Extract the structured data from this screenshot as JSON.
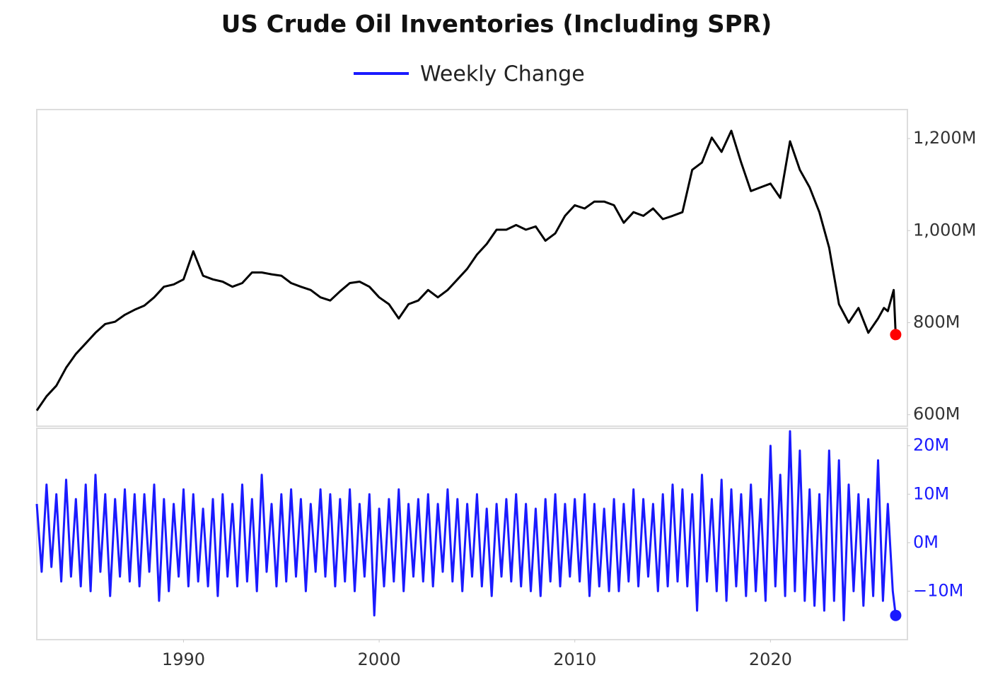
{
  "chart_data": [
    {
      "type": "line",
      "title": "US Crude Oil Inventories (Including SPR)",
      "color": "#000000",
      "last_marker_color": "#ff0000",
      "xlim": [
        1982.5,
        2027
      ],
      "ylim": [
        575,
        1263
      ],
      "yticks": [
        {
          "value": 600,
          "label": "600M"
        },
        {
          "value": 800,
          "label": "800M"
        },
        {
          "value": 1000,
          "label": "1,000M"
        },
        {
          "value": 1200,
          "label": "1,200M"
        }
      ],
      "x": [
        1982.5,
        1983,
        1983.5,
        1984,
        1984.5,
        1985,
        1985.5,
        1986,
        1986.5,
        1987,
        1987.5,
        1988,
        1988.5,
        1989,
        1989.5,
        1990,
        1990.5,
        1991,
        1991.5,
        1992,
        1992.5,
        1993,
        1993.5,
        1994,
        1994.5,
        1995,
        1995.5,
        1996,
        1996.5,
        1997,
        1997.5,
        1998,
        1998.5,
        1999,
        1999.5,
        2000,
        2000.5,
        2001,
        2001.5,
        2002,
        2002.5,
        2003,
        2003.5,
        2004,
        2004.5,
        2005,
        2005.5,
        2006,
        2006.5,
        2007,
        2007.5,
        2008,
        2008.5,
        2009,
        2009.5,
        2010,
        2010.5,
        2011,
        2011.5,
        2012,
        2012.5,
        2013,
        2013.5,
        2014,
        2014.5,
        2015,
        2015.5,
        2016,
        2016.5,
        2017,
        2017.5,
        2018,
        2018.5,
        2019,
        2019.5,
        2020,
        2020.5,
        2021,
        2021.5,
        2022,
        2022.5,
        2023,
        2023.5,
        2024,
        2024.5,
        2025,
        2025.5,
        2025.8,
        2026,
        2026.3,
        2026.4
      ],
      "values": [
        609,
        640,
        663,
        702,
        732,
        755,
        778,
        797,
        802,
        817,
        828,
        837,
        855,
        878,
        883,
        894,
        955,
        902,
        894,
        889,
        878,
        886,
        909,
        909,
        905,
        902,
        886,
        878,
        871,
        855,
        848,
        868,
        886,
        889,
        878,
        855,
        840,
        809,
        840,
        848,
        871,
        855,
        871,
        894,
        917,
        948,
        971,
        1002,
        1002,
        1012,
        1002,
        1009,
        978,
        994,
        1032,
        1055,
        1048,
        1063,
        1063,
        1055,
        1017,
        1040,
        1032,
        1048,
        1025,
        1032,
        1040,
        1132,
        1148,
        1202,
        1171,
        1217,
        1148,
        1086,
        1094,
        1102,
        1071,
        1194,
        1132,
        1094,
        1040,
        963,
        840,
        800,
        832,
        778,
        809,
        832,
        825,
        871,
        774
      ]
    },
    {
      "type": "line",
      "last_marker_color": "#1a1aff",
      "xlim": [
        1982.5,
        2027
      ],
      "ylim": [
        -20,
        23.6
      ],
      "xticks": [
        1990,
        2000,
        2010,
        2020
      ],
      "yticks": [
        {
          "value": -10,
          "label": "−10M"
        },
        {
          "value": 0,
          "label": "0M"
        },
        {
          "value": 10,
          "label": "10M"
        },
        {
          "value": 20,
          "label": "20M"
        }
      ],
      "x": [
        1982.5,
        1982.75,
        1983,
        1983.25,
        1983.5,
        1983.75,
        1984,
        1984.25,
        1984.5,
        1984.75,
        1985,
        1985.25,
        1985.5,
        1985.75,
        1986,
        1986.25,
        1986.5,
        1986.75,
        1987,
        1987.25,
        1987.5,
        1987.75,
        1988,
        1988.25,
        1988.5,
        1988.75,
        1989,
        1989.25,
        1989.5,
        1989.75,
        1990,
        1990.25,
        1990.5,
        1990.75,
        1991,
        1991.25,
        1991.5,
        1991.75,
        1992,
        1992.25,
        1992.5,
        1992.75,
        1993,
        1993.25,
        1993.5,
        1993.75,
        1994,
        1994.25,
        1994.5,
        1994.75,
        1995,
        1995.25,
        1995.5,
        1995.75,
        1996,
        1996.25,
        1996.5,
        1996.75,
        1997,
        1997.25,
        1997.5,
        1997.75,
        1998,
        1998.25,
        1998.5,
        1998.75,
        1999,
        1999.25,
        1999.5,
        1999.75,
        2000,
        2000.25,
        2000.5,
        2000.75,
        2001,
        2001.25,
        2001.5,
        2001.75,
        2002,
        2002.25,
        2002.5,
        2002.75,
        2003,
        2003.25,
        2003.5,
        2003.75,
        2004,
        2004.25,
        2004.5,
        2004.75,
        2005,
        2005.25,
        2005.5,
        2005.75,
        2006,
        2006.25,
        2006.5,
        2006.75,
        2007,
        2007.25,
        2007.5,
        2007.75,
        2008,
        2008.25,
        2008.5,
        2008.75,
        2009,
        2009.25,
        2009.5,
        2009.75,
        2010,
        2010.25,
        2010.5,
        2010.75,
        2011,
        2011.25,
        2011.5,
        2011.75,
        2012,
        2012.25,
        2012.5,
        2012.75,
        2013,
        2013.25,
        2013.5,
        2013.75,
        2014,
        2014.25,
        2014.5,
        2014.75,
        2015,
        2015.25,
        2015.5,
        2015.75,
        2016,
        2016.25,
        2016.5,
        2016.75,
        2017,
        2017.25,
        2017.5,
        2017.75,
        2018,
        2018.25,
        2018.5,
        2018.75,
        2019,
        2019.25,
        2019.5,
        2019.75,
        2020,
        2020.25,
        2020.5,
        2020.75,
        2021,
        2021.25,
        2021.5,
        2021.75,
        2022,
        2022.25,
        2022.5,
        2022.75,
        2023,
        2023.25,
        2023.5,
        2023.75,
        2024,
        2024.25,
        2024.5,
        2024.75,
        2025,
        2025.25,
        2025.5,
        2025.75,
        2026,
        2026.25,
        2026.4
      ],
      "series": [
        {
          "name": "Weekly Change",
          "color": "#1a1aff",
          "values": [
            8,
            -6,
            12,
            -5,
            10,
            -8,
            13,
            -7,
            9,
            -9,
            12,
            -10,
            14,
            -6,
            10,
            -11,
            9,
            -7,
            11,
            -8,
            10,
            -9,
            10,
            -6,
            12,
            -12,
            9,
            -10,
            8,
            -7,
            11,
            -9,
            10,
            -8,
            7,
            -9,
            9,
            -11,
            10,
            -7,
            8,
            -9,
            12,
            -8,
            9,
            -10,
            14,
            -6,
            8,
            -9,
            10,
            -8,
            11,
            -7,
            9,
            -10,
            8,
            -6,
            11,
            -7,
            10,
            -9,
            9,
            -8,
            11,
            -10,
            8,
            -7,
            10,
            -15,
            7,
            -9,
            9,
            -8,
            11,
            -10,
            8,
            -7,
            9,
            -8,
            10,
            -9,
            8,
            -6,
            11,
            -8,
            9,
            -10,
            8,
            -7,
            10,
            -9,
            7,
            -11,
            8,
            -7,
            9,
            -8,
            10,
            -9,
            8,
            -10,
            7,
            -11,
            9,
            -8,
            10,
            -9,
            8,
            -7,
            9,
            -8,
            10,
            -11,
            8,
            -9,
            7,
            -10,
            9,
            -10,
            8,
            -8,
            11,
            -9,
            9,
            -7,
            8,
            -10,
            10,
            -9,
            12,
            -8,
            11,
            -9,
            10,
            -14,
            14,
            -8,
            9,
            -10,
            13,
            -12,
            11,
            -9,
            10,
            -11,
            12,
            -10,
            9,
            -12,
            20,
            -9,
            14,
            -11,
            23,
            -10,
            19,
            -12,
            11,
            -13,
            10,
            -14,
            19,
            -12,
            17,
            -16,
            12,
            -10,
            10,
            -13,
            9,
            -11,
            17,
            -12,
            8,
            -10,
            -15
          ]
        }
      ]
    }
  ]
}
